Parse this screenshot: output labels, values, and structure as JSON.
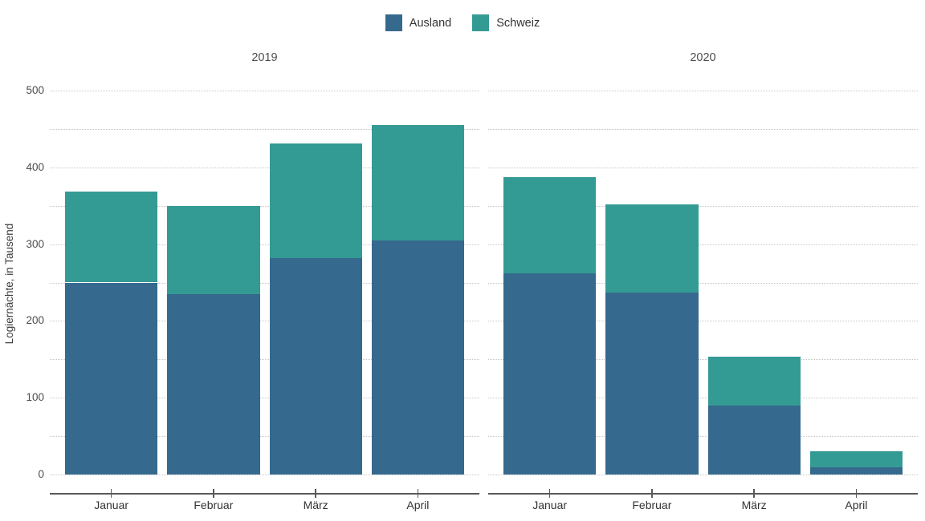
{
  "legend": {
    "items": [
      {
        "label": "Ausland",
        "color": "#35698D",
        "swatch_icon": "square-swatch"
      },
      {
        "label": "Schweiz",
        "color": "#349A94",
        "swatch_icon": "square-swatch"
      }
    ]
  },
  "facets": [
    {
      "label": "2019"
    },
    {
      "label": "2020"
    }
  ],
  "chart_data": {
    "type": "bar",
    "stacked": true,
    "title": "",
    "xlabel": "",
    "ylabel": "Logiernächte, in Tausend",
    "ylim": [
      0,
      500
    ],
    "y_major_ticks": [
      0,
      100,
      200,
      300,
      400,
      500
    ],
    "y_minor_step": 50,
    "grid": "horizontal dotted every 50, per panel",
    "legend_position": "top-center",
    "categories": [
      "Januar",
      "Februar",
      "März",
      "April"
    ],
    "facets": [
      {
        "name": "2019",
        "series": [
          {
            "name": "Ausland",
            "color": "#35698D",
            "values": [
              250,
              235,
              282,
              305
            ]
          },
          {
            "name": "Schweiz",
            "color": "#349A94",
            "values": [
              118,
              115,
              149,
              150
            ]
          }
        ],
        "totals": [
          368,
          350,
          431,
          455
        ]
      },
      {
        "name": "2020",
        "series": [
          {
            "name": "Ausland",
            "color": "#35698D",
            "values": [
              262,
              237,
              90,
              9
            ]
          },
          {
            "name": "Schweiz",
            "color": "#349A94",
            "values": [
              125,
              115,
              63,
              21
            ]
          }
        ],
        "totals": [
          387,
          352,
          153,
          30
        ]
      }
    ]
  },
  "colors": {
    "ausland": "#35698D",
    "schweiz": "#349A94",
    "gridline": "#c6c6c6",
    "axis_line": "#595959",
    "text": "#404040",
    "background": "#ffffff"
  }
}
